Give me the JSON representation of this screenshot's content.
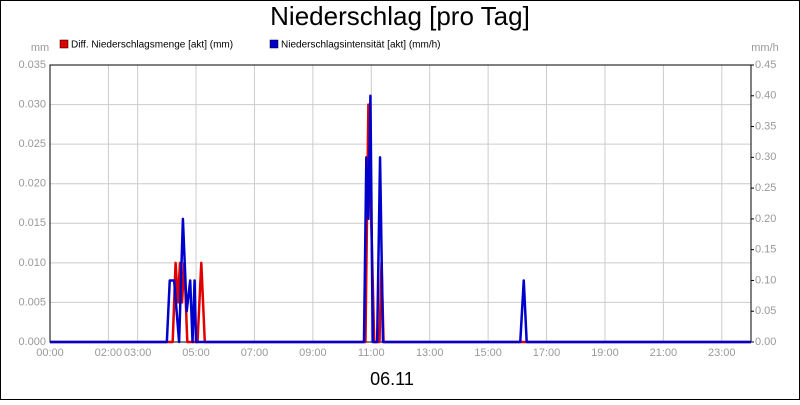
{
  "chart_data": {
    "type": "line",
    "title": "Niederschlag [pro Tag]",
    "xlabel": "06.11",
    "ylabel": "mm",
    "y2label": "mm/h",
    "xlim": [
      0,
      24
    ],
    "xticks": [
      {
        "value": 0,
        "label": "00:00"
      },
      {
        "value": 2,
        "label": "02:00"
      },
      {
        "value": 3,
        "label": "03:00"
      },
      {
        "value": 5,
        "label": "05:00"
      },
      {
        "value": 7,
        "label": "07:00"
      },
      {
        "value": 9,
        "label": "09:00"
      },
      {
        "value": 11,
        "label": "11:00"
      },
      {
        "value": 13,
        "label": "13:00"
      },
      {
        "value": 15,
        "label": "15:00"
      },
      {
        "value": 17,
        "label": "17:00"
      },
      {
        "value": 19,
        "label": "19:00"
      },
      {
        "value": 21,
        "label": "21:00"
      },
      {
        "value": 23,
        "label": "23:00"
      }
    ],
    "ylim": [
      0,
      0.035
    ],
    "yticks": [
      {
        "value": 0,
        "label": "0.000"
      },
      {
        "value": 0.005,
        "label": "0.005"
      },
      {
        "value": 0.01,
        "label": "0.010"
      },
      {
        "value": 0.015,
        "label": "0.015"
      },
      {
        "value": 0.02,
        "label": "0.020"
      },
      {
        "value": 0.025,
        "label": "0.025"
      },
      {
        "value": 0.03,
        "label": "0.030"
      },
      {
        "value": 0.035,
        "label": "0.035"
      }
    ],
    "y2lim": [
      0,
      0.45
    ],
    "y2ticks": [
      {
        "value": 0,
        "label": "0.00"
      },
      {
        "value": 0.05,
        "label": "0.05"
      },
      {
        "value": 0.1,
        "label": "0.10"
      },
      {
        "value": 0.15,
        "label": "0.15"
      },
      {
        "value": 0.2,
        "label": "0.20"
      },
      {
        "value": 0.25,
        "label": "0.25"
      },
      {
        "value": 0.3,
        "label": "0.30"
      },
      {
        "value": 0.35,
        "label": "0.35"
      },
      {
        "value": 0.4,
        "label": "0.40"
      },
      {
        "value": 0.45,
        "label": "0.45"
      }
    ],
    "grid": true,
    "series": [
      {
        "name": "Diff. Niederschlagsmenge [akt] (mm)",
        "color": "#e00000",
        "x": [
          0,
          4.2,
          4.3,
          4.38,
          4.45,
          4.52,
          4.6,
          4.7,
          5.05,
          5.18,
          5.3,
          10.8,
          10.9,
          11.0,
          11.1,
          11.28,
          11.35,
          11.42,
          24
        ],
        "values": [
          0,
          0,
          0.01,
          0.005,
          0.01,
          0.005,
          0.01,
          0,
          0,
          0.01,
          0,
          0,
          0.03,
          0.015,
          0,
          0,
          0.01,
          0,
          0
        ]
      },
      {
        "name": "Niederschlagsintensität [akt] (mm/h)",
        "color": "#0000cc",
        "axis": "y2",
        "x": [
          0,
          4.0,
          4.1,
          4.25,
          4.42,
          4.55,
          4.68,
          4.8,
          4.88,
          4.95,
          5.0,
          10.75,
          10.83,
          10.9,
          10.97,
          11.05,
          11.2,
          11.3,
          11.4,
          16.1,
          16.22,
          16.32,
          24
        ],
        "values": [
          0,
          0,
          0.1,
          0.1,
          0,
          0.2,
          0.05,
          0.1,
          0,
          0.1,
          0,
          0,
          0.3,
          0.2,
          0.4,
          0,
          0,
          0.3,
          0,
          0,
          0.1,
          0,
          0
        ]
      }
    ]
  }
}
